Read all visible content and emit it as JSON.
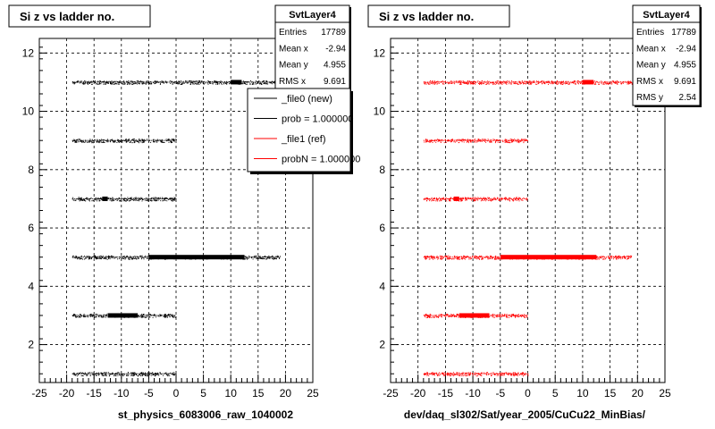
{
  "footer_text": "",
  "chart_data": [
    {
      "type": "scatter",
      "title": "Si z vs ladder no.",
      "xlabel": "st_physics_6083006_raw_1040002",
      "ylabel": "",
      "xlim": [
        -25,
        25
      ],
      "ylim": [
        0.7,
        12.5
      ],
      "xticks": [
        "-25",
        "-20",
        "-15",
        "-10",
        "-5",
        "0",
        "5",
        "10",
        "15",
        "20",
        "25"
      ],
      "yticks": [
        "2",
        "4",
        "6",
        "8",
        "10",
        "12"
      ],
      "grid": true,
      "color": "#000000",
      "stats": {
        "name": "SvtLayer4",
        "rows": [
          {
            "label": "Entries",
            "value": "17789"
          },
          {
            "label": "Mean x",
            "value": "-2.94"
          },
          {
            "label": "Mean y",
            "value": "4.955"
          },
          {
            "label": "RMS x",
            "value": "9.691"
          }
        ]
      },
      "legend": {
        "position": "top-right",
        "entries": [
          {
            "label": "_file0 (new)",
            "color": "#000000"
          },
          {
            "label": "prob = 1.000000",
            "color": "#000000"
          },
          {
            "label": "_file1 (ref)",
            "color": "#ff0000"
          },
          {
            "label": "probN = 1.000000",
            "color": "#ff0000"
          }
        ]
      },
      "bands": [
        {
          "y": 1,
          "x_range": [
            -19,
            0
          ],
          "dense_range": null
        },
        {
          "y": 3,
          "x_range": [
            -19,
            0
          ],
          "dense_range": [
            -12.5,
            -7
          ]
        },
        {
          "y": 5,
          "x_range": [
            -19,
            19
          ],
          "dense_range": [
            -5,
            12.5
          ]
        },
        {
          "y": 7,
          "x_range": [
            -19,
            0
          ],
          "dense_range": [
            -13.5,
            -12.5
          ]
        },
        {
          "y": 9,
          "x_range": [
            -19,
            0
          ],
          "dense_range": null
        },
        {
          "y": 11,
          "x_range": [
            -19,
            19
          ],
          "dense_range": [
            10,
            12
          ]
        }
      ]
    },
    {
      "type": "scatter",
      "title": "Si z vs ladder no.",
      "xlabel": "dev/daq_sl302/Sat/year_2005/CuCu22_MinBias/",
      "ylabel": "",
      "xlim": [
        -25,
        25
      ],
      "ylim": [
        0.7,
        12.5
      ],
      "xticks": [
        "-25",
        "-20",
        "-15",
        "-10",
        "-5",
        "0",
        "5",
        "10",
        "15",
        "20",
        "25"
      ],
      "yticks": [
        "2",
        "4",
        "6",
        "8",
        "10",
        "12"
      ],
      "grid": true,
      "color": "#ff0000",
      "stats": {
        "name": "SvtLayer4",
        "rows": [
          {
            "label": "Entries",
            "value": "17789"
          },
          {
            "label": "Mean x",
            "value": "-2.94"
          },
          {
            "label": "Mean y",
            "value": "4.955"
          },
          {
            "label": "RMS x",
            "value": "9.691"
          },
          {
            "label": "RMS y",
            "value": "2.54"
          }
        ]
      },
      "legend": null,
      "bands": [
        {
          "y": 1,
          "x_range": [
            -19,
            0
          ],
          "dense_range": null
        },
        {
          "y": 3,
          "x_range": [
            -19,
            0
          ],
          "dense_range": [
            -12.5,
            -7
          ]
        },
        {
          "y": 5,
          "x_range": [
            -19,
            19
          ],
          "dense_range": [
            -5,
            12.5
          ]
        },
        {
          "y": 7,
          "x_range": [
            -19,
            0
          ],
          "dense_range": [
            -13.5,
            -12.5
          ]
        },
        {
          "y": 9,
          "x_range": [
            -19,
            0
          ],
          "dense_range": null
        },
        {
          "y": 11,
          "x_range": [
            -19,
            19
          ],
          "dense_range": [
            10,
            12
          ]
        }
      ]
    }
  ]
}
